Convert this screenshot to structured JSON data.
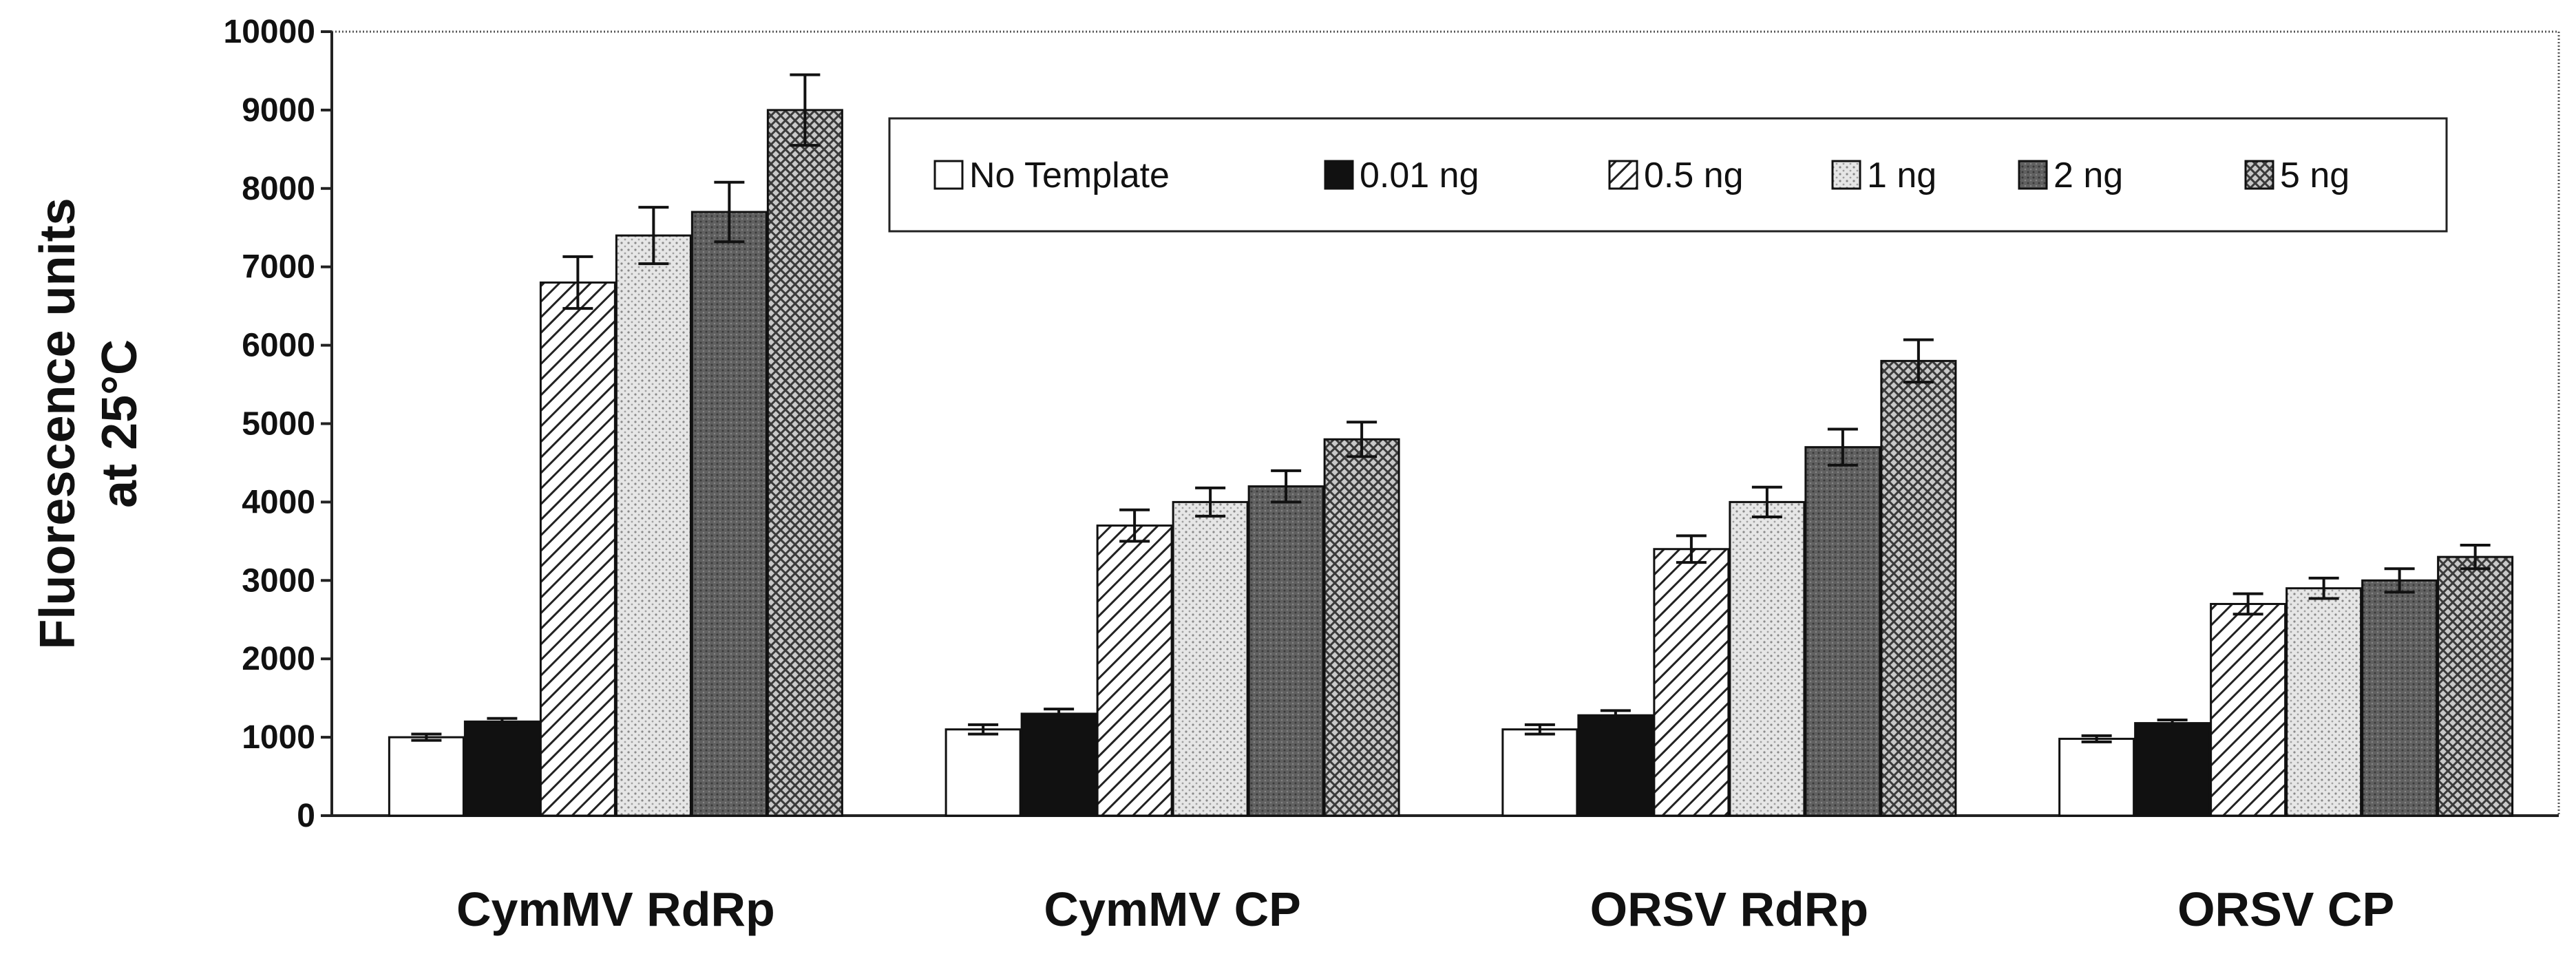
{
  "chart_data": {
    "type": "bar",
    "ylabel_lines": [
      "Fluorescence units",
      "at 25°C"
    ],
    "ylim": [
      0,
      10000
    ],
    "yticks": [
      0,
      1000,
      2000,
      3000,
      4000,
      5000,
      6000,
      7000,
      8000,
      9000,
      10000
    ],
    "categories": [
      "CymMV RdRp",
      "CymMV CP",
      "ORSV RdRp",
      "ORSV CP"
    ],
    "legend_position": "top-right",
    "grid": false,
    "series": [
      {
        "name": "No Template",
        "pattern": "white",
        "values": [
          1000,
          1100,
          1100,
          980
        ],
        "errors": [
          40,
          60,
          60,
          40
        ]
      },
      {
        "name": "0.01 ng",
        "pattern": "black",
        "values": [
          1200,
          1300,
          1280,
          1180
        ],
        "errors": [
          40,
          60,
          60,
          40
        ]
      },
      {
        "name": "0.5 ng",
        "pattern": "hatch",
        "values": [
          6800,
          3700,
          3400,
          2700
        ],
        "errors": [
          330,
          200,
          170,
          130
        ]
      },
      {
        "name": "1 ng",
        "pattern": "dots",
        "values": [
          7400,
          4000,
          4000,
          2900
        ],
        "errors": [
          360,
          180,
          190,
          130
        ]
      },
      {
        "name": "2 ng",
        "pattern": "dark",
        "values": [
          7700,
          4200,
          4700,
          3000
        ],
        "errors": [
          380,
          200,
          230,
          150
        ]
      },
      {
        "name": "5 ng",
        "pattern": "cross",
        "values": [
          9000,
          4800,
          5800,
          3300
        ],
        "errors": [
          450,
          220,
          270,
          150
        ]
      }
    ]
  }
}
